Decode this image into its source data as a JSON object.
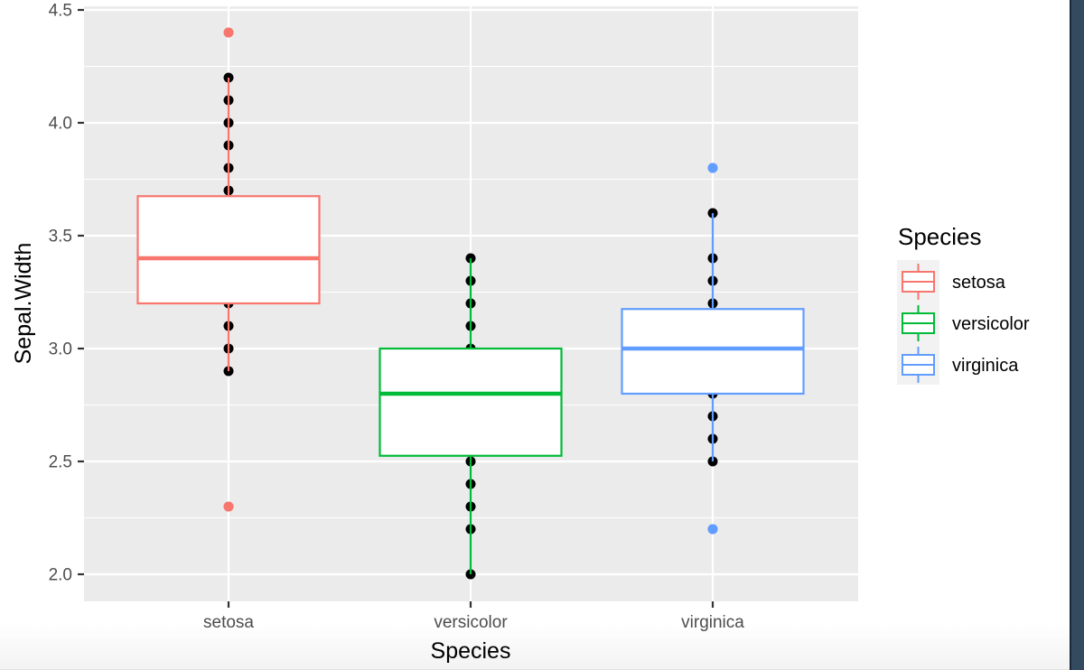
{
  "chart_data": {
    "type": "boxplot",
    "title": "",
    "xlabel": "Species",
    "ylabel": "Sepal.Width",
    "ylim": [
      1.9,
      4.62
    ],
    "y_ticks": [
      2.0,
      2.5,
      3.0,
      3.5,
      4.0,
      4.5
    ],
    "y_tick_labels": [
      "2.0",
      "2.5",
      "3.0",
      "3.5",
      "4.0",
      "4.5"
    ],
    "categories": [
      "setosa",
      "versicolor",
      "virginica"
    ],
    "grid": true,
    "legend": {
      "title": "Species",
      "position": "right",
      "entries": [
        "setosa",
        "versicolor",
        "virginica"
      ]
    },
    "series": [
      {
        "name": "setosa",
        "color": "#F8766D",
        "q1": 3.2,
        "median": 3.4,
        "q3": 3.675,
        "whisker_low": 2.9,
        "whisker_high": 4.2,
        "outliers": [
          4.4,
          2.3
        ],
        "points": [
          2.3,
          2.9,
          3.0,
          3.1,
          3.2,
          3.3,
          3.4,
          3.5,
          3.6,
          3.7,
          3.8,
          3.9,
          4.0,
          4.1,
          4.2,
          4.4
        ]
      },
      {
        "name": "versicolor",
        "color": "#00BA38",
        "q1": 2.525,
        "median": 2.8,
        "q3": 3.0,
        "whisker_low": 2.0,
        "whisker_high": 3.4,
        "outliers": [],
        "points": [
          2.0,
          2.2,
          2.3,
          2.4,
          2.5,
          2.6,
          2.7,
          2.8,
          2.9,
          3.0,
          3.1,
          3.2,
          3.3,
          3.4
        ]
      },
      {
        "name": "virginica",
        "color": "#619CFF",
        "q1": 2.8,
        "median": 3.0,
        "q3": 3.175,
        "whisker_low": 2.5,
        "whisker_high": 3.6,
        "outliers": [
          3.8,
          2.2
        ],
        "points": [
          2.2,
          2.5,
          2.6,
          2.7,
          2.8,
          2.9,
          3.0,
          3.1,
          3.2,
          3.3,
          3.4,
          3.6,
          3.8
        ]
      }
    ],
    "colors": {
      "panel_background": "#EBEBEB",
      "grid": "#FFFFFF",
      "point": "#000000",
      "axis_text": "#4D4D4D"
    }
  }
}
